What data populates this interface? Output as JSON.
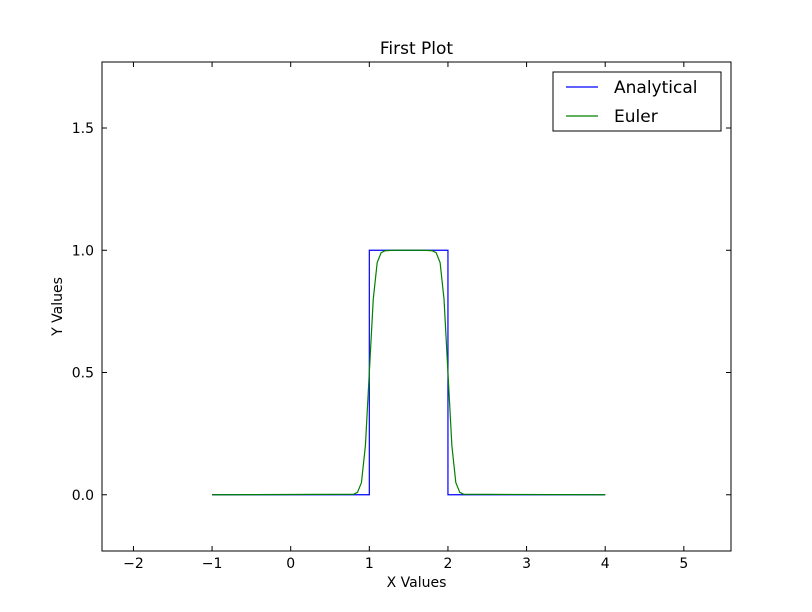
{
  "chart_data": {
    "type": "line",
    "title": "First Plot",
    "xlabel": "X Values",
    "ylabel": "Y Values",
    "xlim": [
      -2.4,
      5.6
    ],
    "ylim": [
      -0.23,
      1.77
    ],
    "xticks": [
      -2,
      -1,
      0,
      1,
      2,
      3,
      4,
      5
    ],
    "xtick_labels": [
      "−2",
      "−1",
      "0",
      "1",
      "2",
      "3",
      "4",
      "5"
    ],
    "yticks": [
      0.0,
      0.5,
      1.0,
      1.5
    ],
    "ytick_labels": [
      "0.0",
      "0.5",
      "1.0",
      "1.5"
    ],
    "grid": false,
    "legend_position": "top-right",
    "series": [
      {
        "name": "Analytical",
        "color": "#0000ff",
        "x": [
          -1,
          1,
          1,
          2,
          2,
          4
        ],
        "y": [
          0,
          0,
          1,
          1,
          0,
          0
        ]
      },
      {
        "name": "Euler",
        "color": "#008000",
        "x": [
          -1,
          0.8,
          0.85,
          0.9,
          0.95,
          1.0,
          1.05,
          1.1,
          1.15,
          1.2,
          1.3,
          1.5,
          1.7,
          1.8,
          1.85,
          1.9,
          1.95,
          2.0,
          2.05,
          2.1,
          2.15,
          2.2,
          4
        ],
        "y": [
          0,
          0.002,
          0.01,
          0.05,
          0.2,
          0.5,
          0.8,
          0.95,
          0.99,
          0.998,
          1.0,
          1.0,
          1.0,
          0.998,
          0.99,
          0.95,
          0.8,
          0.5,
          0.2,
          0.05,
          0.01,
          0.002,
          0
        ]
      }
    ]
  }
}
